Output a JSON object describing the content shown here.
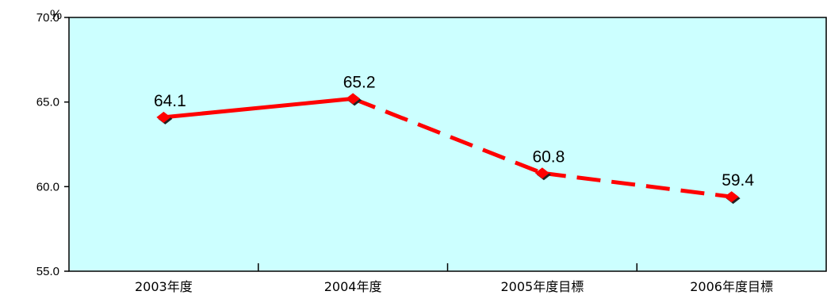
{
  "chart_data": {
    "type": "line",
    "categories": [
      "2003年度",
      "2004年度",
      "2005年度目標",
      "2006年度目標"
    ],
    "series": [
      {
        "values": [
          64.1,
          65.2,
          60.8,
          59.4
        ],
        "line_styles": [
          "solid",
          "dashed",
          "dashed"
        ],
        "color": "#ff0000"
      }
    ],
    "data_labels": [
      "64.1",
      "65.2",
      "60.8",
      "59.4"
    ],
    "y_unit": "%",
    "ylim": [
      55.0,
      70.0
    ],
    "yticks": [
      55.0,
      60.0,
      65.0,
      70.0
    ],
    "ytick_labels": [
      "55.0",
      "60.0",
      "65.0",
      "70.0"
    ],
    "grid": false,
    "plot_background": "#ccffff",
    "marker": "diamond",
    "marker_color": "#ff0000"
  }
}
